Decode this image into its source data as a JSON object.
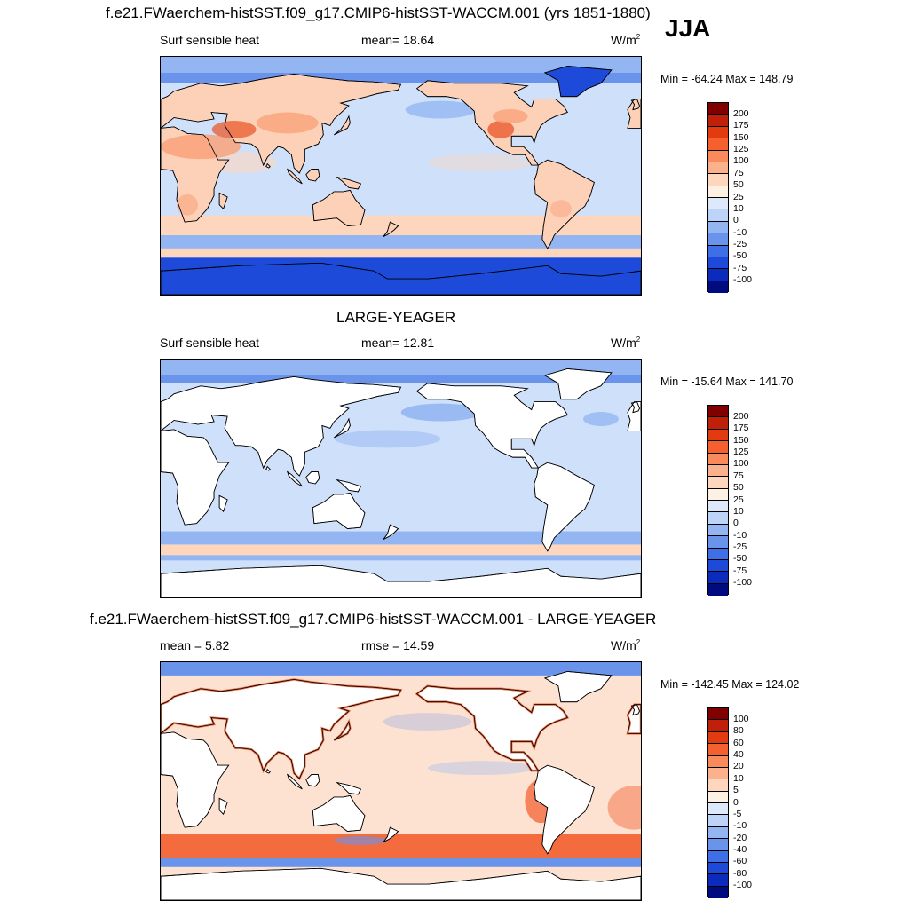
{
  "season": "JJA",
  "panels": [
    {
      "id": "test",
      "title": "f.e21.FWaerchem-histSST.f09_g17.CMIP6-histSST-WACCM.001 (yrs 1851-1880)",
      "left_label": "Surf sensible heat",
      "center_label": "mean=  18.64",
      "units": "W/m",
      "units_sup": "2",
      "minmax": "Min = -64.24 Max = 148.79",
      "colorbar": {
        "labels": [
          "200",
          "175",
          "150",
          "125",
          "100",
          "75",
          "50",
          "25",
          "10",
          "0",
          "-10",
          "-25",
          "-50",
          "-75",
          "-100"
        ],
        "colors": [
          "#800000",
          "#c0200a",
          "#e33b10",
          "#f5602e",
          "#f98a5c",
          "#fbb28c",
          "#fdd6bd",
          "#fdf1e4",
          "#dde9fb",
          "#bdd4f8",
          "#93b6f2",
          "#6a93ec",
          "#3f6fe6",
          "#1d4ad9",
          "#0b2bbd",
          "#000b80"
        ]
      }
    },
    {
      "id": "obs",
      "title": "LARGE-YEAGER",
      "left_label": "Surf sensible heat",
      "center_label": "mean=  12.81",
      "units": "W/m",
      "units_sup": "2",
      "minmax": "Min = -15.64 Max = 141.70",
      "colorbar": {
        "labels": [
          "200",
          "175",
          "150",
          "125",
          "100",
          "75",
          "50",
          "25",
          "10",
          "0",
          "-10",
          "-25",
          "-50",
          "-75",
          "-100"
        ],
        "colors": [
          "#800000",
          "#c0200a",
          "#e33b10",
          "#f5602e",
          "#f98a5c",
          "#fbb28c",
          "#fdd6bd",
          "#fdf1e4",
          "#dde9fb",
          "#bdd4f8",
          "#93b6f2",
          "#6a93ec",
          "#3f6fe6",
          "#1d4ad9",
          "#0b2bbd",
          "#000b80"
        ]
      }
    },
    {
      "id": "diff",
      "title": "f.e21.FWaerchem-histSST.f09_g17.CMIP6-histSST-WACCM.001 - LARGE-YEAGER",
      "left_label": "mean =   5.82",
      "center_label": "rmse =  14.59",
      "units": "W/m",
      "units_sup": "2",
      "minmax": "Min = -142.45 Max = 124.02",
      "colorbar": {
        "labels": [
          "100",
          "80",
          "60",
          "40",
          "20",
          "10",
          "5",
          "0",
          "-5",
          "-10",
          "-20",
          "-40",
          "-60",
          "-80",
          "-100"
        ],
        "colors": [
          "#800000",
          "#c0200a",
          "#e33b10",
          "#f5602e",
          "#f98a5c",
          "#fbb28c",
          "#fdd6bd",
          "#fdf1e4",
          "#dde9fb",
          "#bdd4f8",
          "#93b6f2",
          "#6a93ec",
          "#3f6fe6",
          "#1d4ad9",
          "#0b2bbd",
          "#000b80"
        ]
      }
    }
  ],
  "palette": {
    "ocean_test": "#cfe0fa",
    "ocean_obs": "#cfe0fa",
    "ocean_diff": "#fde2d2",
    "land_white": "#ffffff",
    "land_warm": "#f9a27a",
    "land_hot": "#ea5a2e",
    "land_peach": "#fcd1b8",
    "ice_blue": "#1d4ad9",
    "band_blue": "#93b6f2",
    "band_peach": "#fdd6bd",
    "diff_red": "#f46b3e",
    "diff_blue": "#6a93ec"
  }
}
